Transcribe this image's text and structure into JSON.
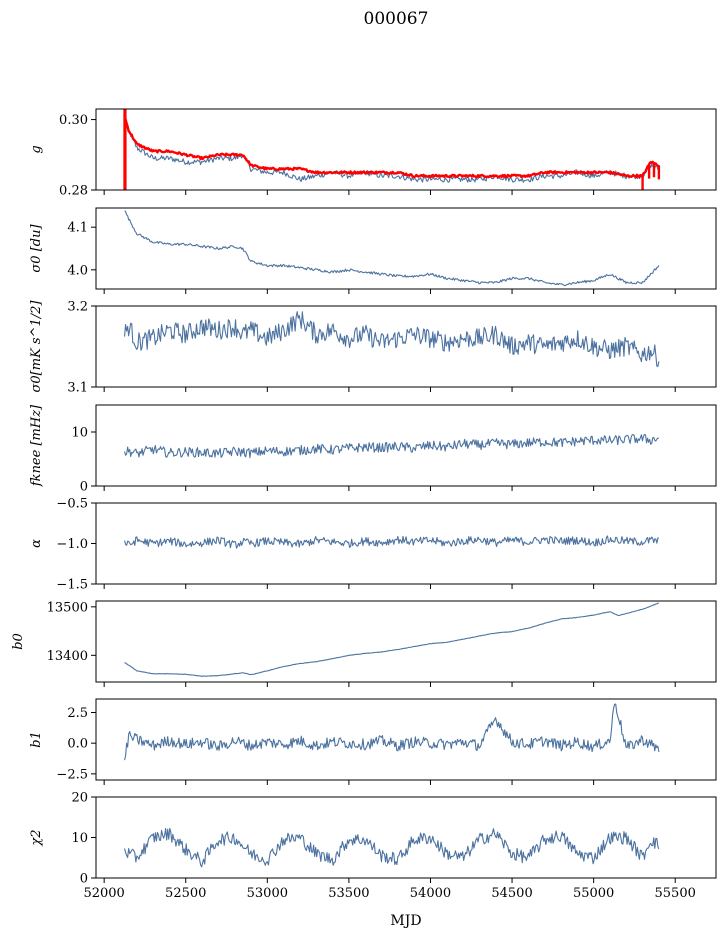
{
  "figure": {
    "title": "000067",
    "xlabel": "MJD",
    "xlim": [
      51950,
      55750
    ],
    "xticks": [
      52000,
      52500,
      53000,
      53500,
      54000,
      54500,
      55000,
      55500
    ],
    "xtick_labels": [
      "52000",
      "52500",
      "53000",
      "53500",
      "54000",
      "54500",
      "55000",
      "55500"
    ],
    "series_color": "#4c72a0",
    "fit_color": "#ff0000"
  },
  "chart_data": [
    {
      "type": "line",
      "ylabel": "g",
      "ylim": [
        0.28,
        0.303
      ],
      "yticks": [
        0.28,
        0.3
      ],
      "ytick_labels": [
        "0.28",
        "0.30"
      ],
      "x": [
        52125,
        52150,
        52200,
        52300,
        52400,
        52500,
        52600,
        52700,
        52800,
        52850,
        52900,
        53000,
        53100,
        53200,
        53300,
        53400,
        53500,
        53600,
        53700,
        53800,
        53900,
        54000,
        54100,
        54200,
        54300,
        54400,
        54500,
        54600,
        54700,
        54800,
        54900,
        55000,
        55100,
        55200,
        55300,
        55350,
        55400
      ],
      "series": [
        {
          "name": "",
          "values": [
            0.3,
            0.297,
            0.292,
            0.289,
            0.289,
            0.288,
            0.288,
            0.289,
            0.289,
            0.29,
            0.286,
            0.285,
            0.285,
            0.283,
            0.284,
            0.285,
            0.284,
            0.285,
            0.284,
            0.284,
            0.283,
            0.283,
            0.283,
            0.283,
            0.283,
            0.284,
            0.283,
            0.283,
            0.284,
            0.284,
            0.285,
            0.284,
            0.285,
            0.284,
            0.284,
            0.287,
            0.286
          ]
        },
        {
          "name": "",
          "values": [
            0.301,
            0.297,
            0.293,
            0.291,
            0.291,
            0.29,
            0.289,
            0.29,
            0.29,
            0.29,
            0.287,
            0.286,
            0.286,
            0.286,
            0.285,
            0.285,
            0.285,
            0.285,
            0.285,
            0.285,
            0.284,
            0.284,
            0.284,
            0.284,
            0.284,
            0.284,
            0.284,
            0.284,
            0.285,
            0.285,
            0.285,
            0.285,
            0.285,
            0.284,
            0.284,
            0.288,
            0.287
          ]
        }
      ]
    },
    {
      "type": "line",
      "ylabel": "σ0 [du]",
      "ylim": [
        3.955,
        4.145
      ],
      "yticks": [
        4.0,
        4.1
      ],
      "ytick_labels": [
        "4.0",
        "4.1"
      ],
      "x": [
        52125,
        52150,
        52200,
        52300,
        52400,
        52500,
        52600,
        52700,
        52800,
        52850,
        52900,
        53000,
        53100,
        53200,
        53300,
        53400,
        53500,
        53600,
        53700,
        53800,
        53900,
        54000,
        54100,
        54200,
        54300,
        54400,
        54500,
        54600,
        54700,
        54800,
        54900,
        55000,
        55100,
        55200,
        55300,
        55350,
        55400
      ],
      "series": [
        {
          "name": "",
          "values": [
            4.14,
            4.12,
            4.085,
            4.065,
            4.06,
            4.06,
            4.055,
            4.05,
            4.055,
            4.05,
            4.02,
            4.01,
            4.01,
            4.005,
            4.0,
            3.995,
            4.0,
            3.995,
            3.99,
            3.985,
            3.985,
            3.99,
            3.98,
            3.975,
            3.97,
            3.97,
            3.98,
            3.98,
            3.97,
            3.965,
            3.97,
            3.975,
            3.99,
            3.97,
            3.97,
            3.99,
            4.01
          ]
        }
      ]
    },
    {
      "type": "line",
      "ylabel": "σ0[mK s^1/2]",
      "ylim": [
        3.1,
        3.2
      ],
      "yticks": [
        3.1,
        3.2
      ],
      "ytick_labels": [
        "3.1",
        "3.2"
      ],
      "x": [
        52125,
        52150,
        52200,
        52300,
        52400,
        52500,
        52600,
        52700,
        52800,
        52850,
        52900,
        53000,
        53100,
        53200,
        53300,
        53400,
        53500,
        53600,
        53700,
        53800,
        53900,
        54000,
        54100,
        54200,
        54300,
        54400,
        54500,
        54600,
        54700,
        54800,
        54900,
        55000,
        55100,
        55200,
        55300,
        55350,
        55400
      ],
      "series": [
        {
          "name": "",
          "values": [
            3.165,
            3.175,
            3.155,
            3.16,
            3.17,
            3.165,
            3.175,
            3.17,
            3.175,
            3.165,
            3.17,
            3.16,
            3.17,
            3.185,
            3.165,
            3.17,
            3.16,
            3.165,
            3.155,
            3.16,
            3.165,
            3.16,
            3.155,
            3.16,
            3.16,
            3.165,
            3.15,
            3.155,
            3.15,
            3.155,
            3.16,
            3.15,
            3.145,
            3.15,
            3.14,
            3.145,
            3.135
          ]
        }
      ]
    },
    {
      "type": "line",
      "ylabel": "fknee [mHz]",
      "ylim": [
        0,
        15
      ],
      "yticks": [
        0,
        10
      ],
      "ytick_labels": [
        "0",
        "10"
      ],
      "x": [
        52125,
        52150,
        52200,
        52300,
        52400,
        52500,
        52600,
        52700,
        52800,
        52850,
        52900,
        53000,
        53100,
        53200,
        53300,
        53400,
        53500,
        53600,
        53700,
        53800,
        53900,
        54000,
        54100,
        54200,
        54300,
        54400,
        54500,
        54600,
        54700,
        54800,
        54900,
        55000,
        55100,
        55200,
        55300,
        55350,
        55400
      ],
      "series": [
        {
          "name": "",
          "values": [
            6.2,
            6.5,
            6.0,
            6.8,
            6.1,
            6.3,
            6.2,
            6.0,
            6.4,
            6.3,
            6.1,
            6.5,
            6.4,
            6.6,
            6.9,
            6.7,
            7.0,
            7.2,
            7.1,
            7.3,
            7.0,
            7.5,
            7.2,
            7.8,
            7.6,
            7.9,
            7.7,
            8.0,
            8.2,
            8.0,
            8.3,
            8.5,
            8.4,
            8.6,
            8.8,
            8.5,
            8.9
          ]
        }
      ]
    },
    {
      "type": "line",
      "ylabel": "α",
      "ylim": [
        -1.5,
        -0.5
      ],
      "yticks": [
        -1.5,
        -1.0,
        -0.5
      ],
      "ytick_labels": [
        "−1.5",
        "−1.0",
        "−0.5"
      ],
      "x": [
        52125,
        52150,
        52200,
        52300,
        52400,
        52500,
        52600,
        52700,
        52800,
        52850,
        52900,
        53000,
        53100,
        53200,
        53300,
        53400,
        53500,
        53600,
        53700,
        53800,
        53900,
        54000,
        54100,
        54200,
        54300,
        54400,
        54500,
        54600,
        54700,
        54800,
        54900,
        55000,
        55100,
        55200,
        55300,
        55350,
        55400
      ],
      "series": [
        {
          "name": "",
          "values": [
            -0.98,
            -1.02,
            -0.96,
            -1.0,
            -0.97,
            -1.01,
            -0.99,
            -0.96,
            -1.02,
            -0.98,
            -1.0,
            -0.97,
            -0.99,
            -1.01,
            -0.96,
            -0.98,
            -1.0,
            -0.97,
            -0.99,
            -0.95,
            -0.98,
            -0.96,
            -1.0,
            -0.97,
            -0.95,
            -0.99,
            -0.96,
            -0.98,
            -0.95,
            -0.97,
            -0.96,
            -0.99,
            -0.95,
            -0.97,
            -0.98,
            -0.96,
            -0.97
          ]
        }
      ]
    },
    {
      "type": "line",
      "ylabel": "b0",
      "ylim": [
        13345,
        13512
      ],
      "yticks": [
        13400,
        13500
      ],
      "ytick_labels": [
        "13400",
        "13500"
      ],
      "x": [
        52125,
        52150,
        52200,
        52300,
        52400,
        52500,
        52600,
        52700,
        52800,
        52850,
        52900,
        53000,
        53100,
        53200,
        53300,
        53400,
        53500,
        53600,
        53700,
        53800,
        53900,
        54000,
        54100,
        54200,
        54300,
        54400,
        54500,
        54600,
        54700,
        54800,
        54900,
        55000,
        55100,
        55150,
        55200,
        55300,
        55400
      ],
      "series": [
        {
          "name": "",
          "values": [
            13385,
            13380,
            13368,
            13362,
            13362,
            13361,
            13357,
            13358,
            13362,
            13364,
            13360,
            13368,
            13377,
            13383,
            13387,
            13393,
            13400,
            13404,
            13407,
            13412,
            13418,
            13424,
            13427,
            13433,
            13440,
            13446,
            13449,
            13456,
            13466,
            13475,
            13478,
            13483,
            13490,
            13482,
            13486,
            13495,
            13508
          ]
        }
      ]
    },
    {
      "type": "line",
      "ylabel": "b1",
      "ylim": [
        -3.0,
        3.6
      ],
      "yticks": [
        -2.5,
        0.0,
        2.5
      ],
      "ytick_labels": [
        "−2.5",
        "0.0",
        "2.5"
      ],
      "x": [
        52125,
        52150,
        52200,
        52300,
        52400,
        52500,
        52600,
        52700,
        52800,
        52850,
        52900,
        53000,
        53100,
        53200,
        53300,
        53400,
        53500,
        53600,
        53700,
        53800,
        53900,
        54000,
        54100,
        54200,
        54300,
        54400,
        54500,
        54600,
        54700,
        54800,
        54900,
        55000,
        55100,
        55130,
        55200,
        55300,
        55400
      ],
      "series": [
        {
          "name": "",
          "values": [
            -1.5,
            0.6,
            0.3,
            -0.2,
            0.2,
            -0.1,
            0.1,
            -0.3,
            0.2,
            0.0,
            -0.2,
            0.1,
            -0.1,
            0.2,
            -0.2,
            0.1,
            0.0,
            -0.1,
            0.2,
            -0.2,
            0.1,
            0.0,
            -0.1,
            0.1,
            -0.2,
            2.0,
            0.1,
            -0.1,
            0.2,
            -0.2,
            0.1,
            -0.3,
            0.2,
            3.5,
            -0.4,
            0.3,
            -0.5
          ]
        }
      ]
    },
    {
      "type": "line",
      "ylabel": "χ2",
      "ylim": [
        0,
        20
      ],
      "yticks": [
        0,
        10,
        20
      ],
      "ytick_labels": [
        "0",
        "10",
        "20"
      ],
      "x": [
        52125,
        52150,
        52200,
        52300,
        52400,
        52500,
        52600,
        52700,
        52800,
        52850,
        52900,
        53000,
        53100,
        53200,
        53300,
        53400,
        53500,
        53600,
        53700,
        53800,
        53900,
        54000,
        54100,
        54200,
        54300,
        54400,
        54500,
        54600,
        54700,
        54800,
        54900,
        55000,
        55100,
        55200,
        55300,
        55350,
        55400
      ],
      "series": [
        {
          "name": "",
          "values": [
            7.0,
            6.0,
            5.0,
            10.0,
            11.0,
            7.0,
            4.0,
            9.5,
            10.0,
            8.0,
            6.0,
            4.5,
            9.5,
            10.0,
            6.0,
            4.5,
            9.5,
            9.5,
            5.5,
            4.5,
            9.5,
            10.0,
            6.0,
            5.0,
            9.5,
            11.0,
            6.0,
            5.0,
            9.5,
            10.5,
            6.0,
            5.0,
            10.0,
            10.0,
            5.0,
            9.5,
            8.0
          ]
        }
      ]
    }
  ]
}
